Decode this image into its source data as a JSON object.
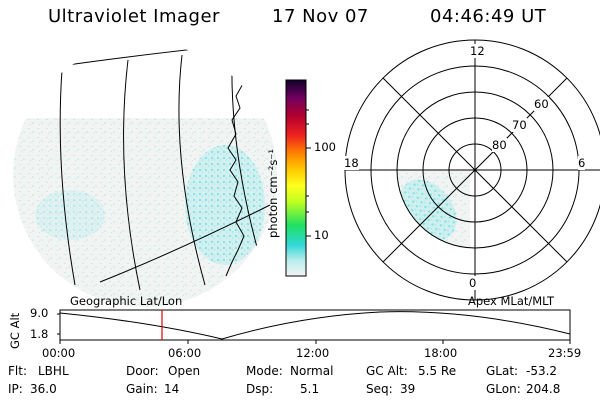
{
  "header": {
    "instrument": "Ultraviolet Imager",
    "date": "17 Nov 07",
    "time": "04:46:49 UT"
  },
  "colorbar": {
    "unit_label": "photon cm⁻²s⁻¹",
    "tick_labels": [
      "100",
      "10"
    ]
  },
  "polar_plot": {
    "mlt_labels": {
      "top": "12",
      "left": "18",
      "right": "6",
      "bottom": "0"
    },
    "lat_labels": [
      "60",
      "70",
      "80"
    ]
  },
  "map_caption": "Geographic Lat/Lon",
  "polar_caption": "Apex MLat/MLT",
  "altitude_plot": {
    "y_label": "GC Alt",
    "y_ticks": [
      "9.0",
      "1.8"
    ],
    "x_ticks": [
      "00:00",
      "06:00",
      "12:00",
      "18:00",
      "23:59"
    ],
    "marker_color": "#e00000"
  },
  "status": {
    "filter_label": "Flt:",
    "filter_value": "LBHL",
    "ip_label": "IP:",
    "ip_value": "36.0",
    "door_label": "Door:",
    "door_value": "Open",
    "gain_label": "Gain:",
    "gain_value": "14",
    "mode_label": "Mode:",
    "mode_value": "Normal",
    "dsp_label": "Dsp:",
    "dsp_value": "5.1",
    "gcalt_label": "GC Alt:",
    "gcalt_value": "5.5 Re",
    "seq_label": "Seq:",
    "seq_value": "39",
    "glat_label": "GLat:",
    "glat_value": "-53.2",
    "glon_label": "GLon:",
    "glon_value": "204.8"
  }
}
